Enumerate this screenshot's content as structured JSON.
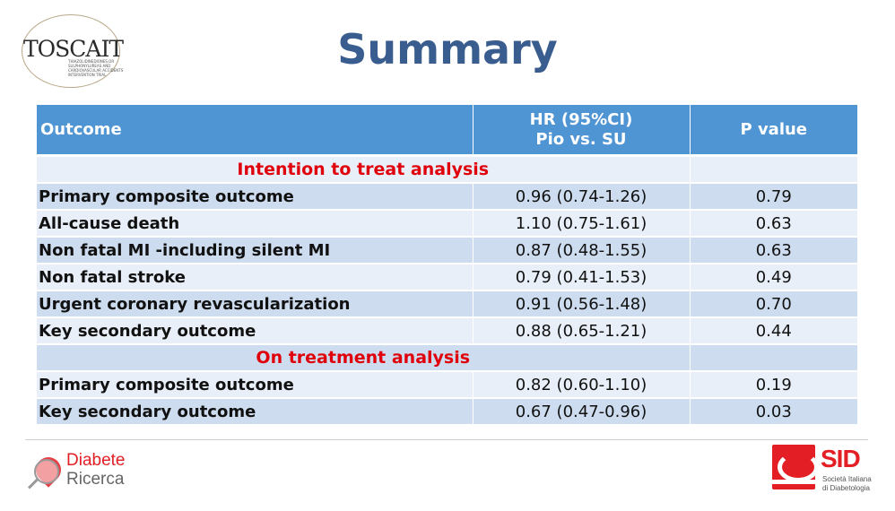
{
  "logos": {
    "toscait": {
      "text": "TOSCAIT",
      "tagline": "THIAZOLIDINEDIONES OR SULPHONYLUREAS AND CARDIOVASCULAR ACCIDENTS INTERVENTION TRIAL"
    },
    "diabete_ricerca": {
      "line1": "Diabete",
      "line2": "Ricerca"
    },
    "sid": {
      "text": "SID",
      "line1": "Società Italiana",
      "line2": "di Diabetologia"
    }
  },
  "slide": {
    "title": "Summary"
  },
  "table": {
    "headers": {
      "outcome": "Outcome",
      "hr_line1": "HR (95%CI)",
      "hr_line2": "Pio vs. SU",
      "p": "P value"
    },
    "sections": [
      {
        "label": "Intention to treat analysis",
        "rows": [
          {
            "outcome": "Primary composite outcome",
            "hr": "0.96 (0.74-1.26)",
            "p": "0.79"
          },
          {
            "outcome": "All-cause death",
            "hr": "1.10 (0.75-1.61)",
            "p": "0.63"
          },
          {
            "outcome": "Non fatal MI -including silent MI",
            "hr": "0.87 (0.48-1.55)",
            "p": "0.63"
          },
          {
            "outcome": "Non fatal stroke",
            "hr": "0.79 (0.41-1.53)",
            "p": "0.49"
          },
          {
            "outcome": "Urgent coronary revascularization",
            "hr": "0.91 (0.56-1.48)",
            "p": "0.70"
          },
          {
            "outcome": "Key secondary outcome",
            "hr": "0.88 (0.65-1.21)",
            "p": "0.44"
          }
        ]
      },
      {
        "label": "On treatment analysis",
        "rows": [
          {
            "outcome": "Primary composite outcome",
            "hr": "0.82 (0.60-1.10)",
            "p": "0.19"
          },
          {
            "outcome": "Key secondary outcome",
            "hr": "0.67 (0.47-0.96)",
            "p": "0.03"
          }
        ]
      }
    ]
  },
  "colors": {
    "title": "#3a5d8f",
    "header_bg": "#4f94d3",
    "row_dark": "#cddcee",
    "row_light": "#e8eff8",
    "section_text": "#e0000c"
  }
}
